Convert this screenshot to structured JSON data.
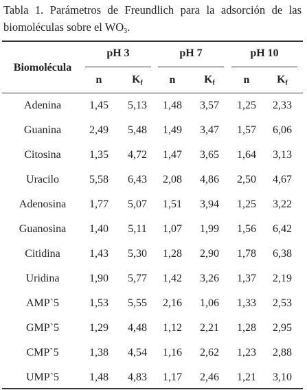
{
  "caption": {
    "text": "Tabla 1. Parámetros de Freundlich para la adsorción de las biomoléculas sobre el WO",
    "sub": "3",
    "end": "."
  },
  "table": {
    "row_header": "Biomolécula",
    "groups": [
      "pH 3",
      "pH 7",
      "pH 10"
    ],
    "subheaders": [
      {
        "main": "n"
      },
      {
        "main": "K",
        "sub": "f"
      },
      {
        "main": "n"
      },
      {
        "main": "K",
        "sub": "f"
      },
      {
        "main": "n"
      },
      {
        "main": "K",
        "sub": "f"
      }
    ],
    "rows": [
      [
        "Adenina",
        "1,45",
        "5,13",
        "1,48",
        "3,57",
        "1,25",
        "2,33"
      ],
      [
        "Guanina",
        "2,49",
        "5,48",
        "1,49",
        "3,47",
        "1,57",
        "6,06"
      ],
      [
        "Citosina",
        "1,35",
        "4,72",
        "1,47",
        "3,65",
        "1,64",
        "3,13"
      ],
      [
        "Uracilo",
        "5,58",
        "6,43",
        "2,08",
        "4,86",
        "2,50",
        "4,67"
      ],
      [
        "Adenosina",
        "1,77",
        "5,07",
        "1,51",
        "3,94",
        "1,25",
        "3,22"
      ],
      [
        "Guanosina",
        "1,40",
        "5,11",
        "1,07",
        "1,99",
        "1,56",
        "6,42"
      ],
      [
        "Citidina",
        "1,43",
        "5,30",
        "1,28",
        "2,90",
        "1,78",
        "6,38"
      ],
      [
        "Uridina",
        "1,90",
        "5,77",
        "1,42",
        "3,26",
        "1,37",
        "2,19"
      ],
      [
        "AMP`5",
        "1,53",
        "5,55",
        "2,16",
        "1,06",
        "1,33",
        "2,53"
      ],
      [
        "GMP`5",
        "1,29",
        "4,48",
        "1,12",
        "2,21",
        "1,28",
        "2,95"
      ],
      [
        "CMP`5",
        "1,38",
        "4,54",
        "1,16",
        "2,62",
        "1,23",
        "2,88"
      ],
      [
        "UMP`5",
        "1,48",
        "4,83",
        "1,17",
        "2,46",
        "1,21",
        "3,10"
      ]
    ]
  }
}
